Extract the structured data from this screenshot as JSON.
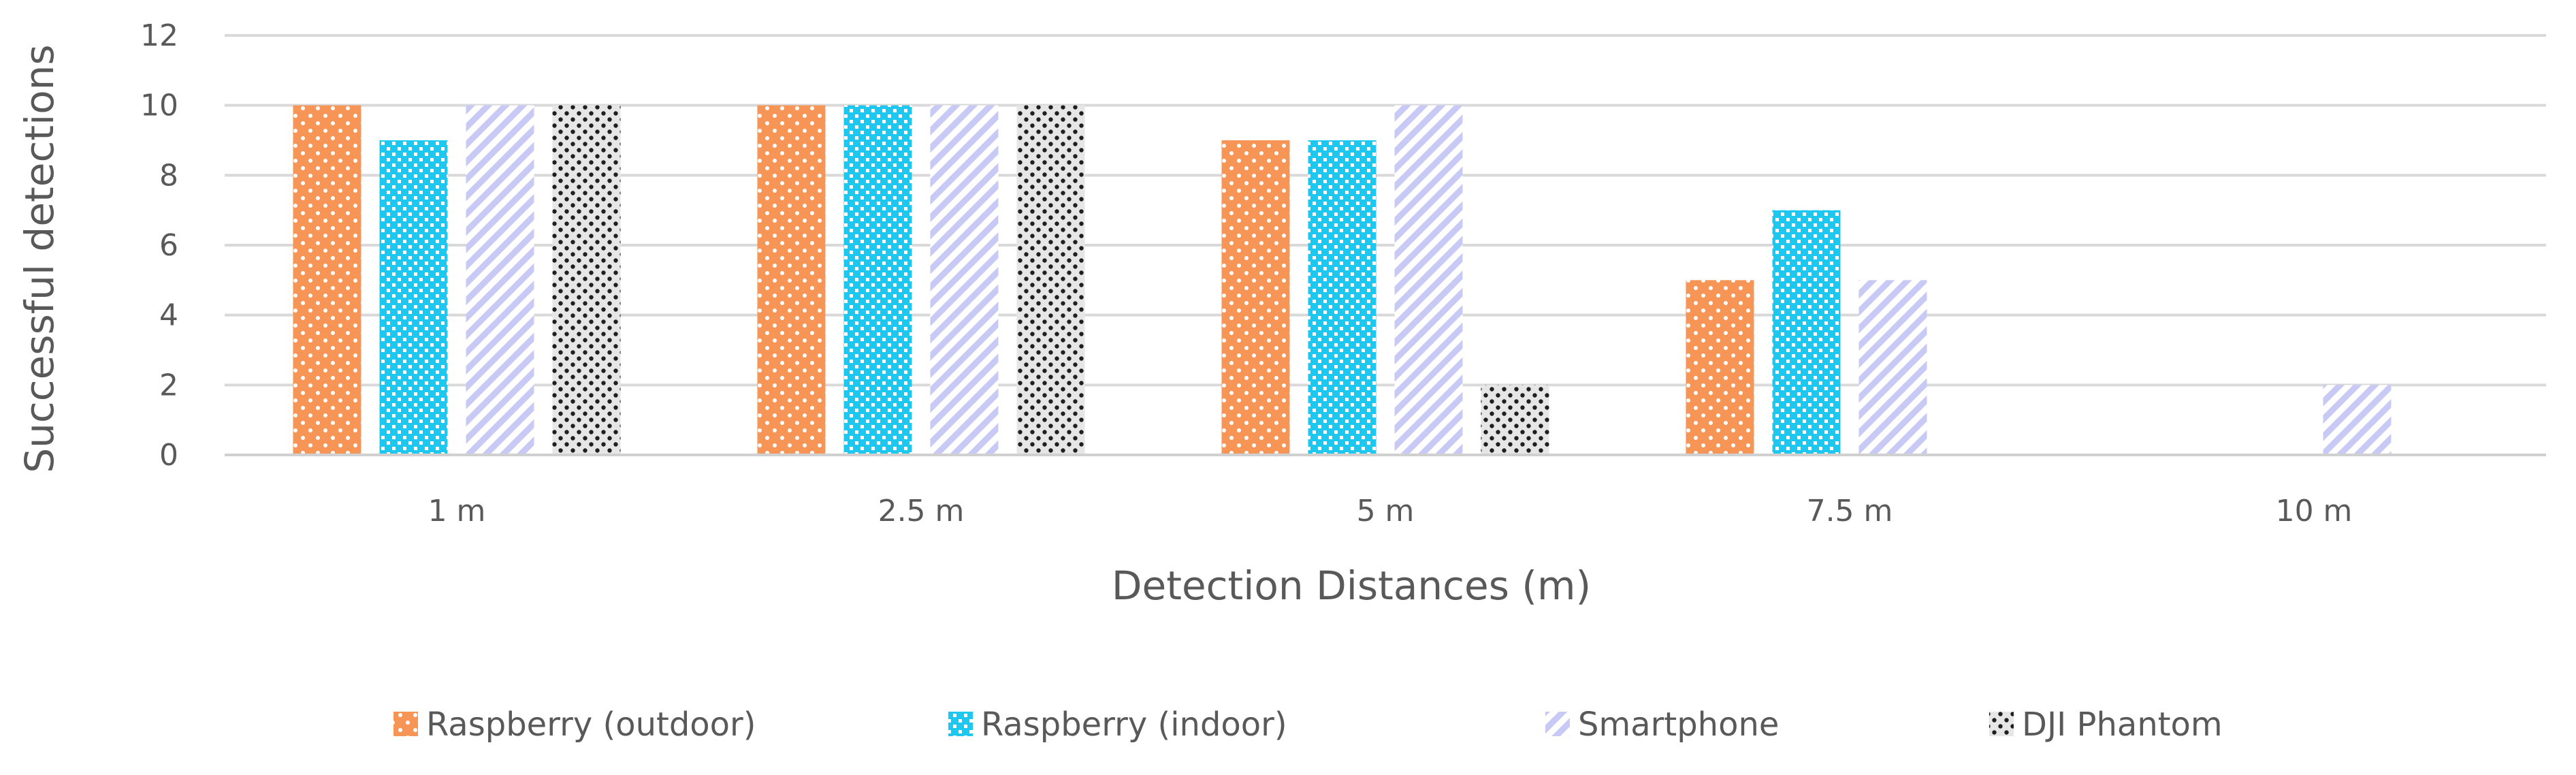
{
  "chart_data": {
    "type": "bar",
    "title": "",
    "xlabel": "Detection Distances (m)",
    "ylabel": "Successful detections",
    "categories": [
      "1 m",
      "2.5 m",
      "5 m",
      "7.5 m",
      "10 m"
    ],
    "ylim": [
      0,
      12
    ],
    "yticks": [
      0,
      2,
      4,
      6,
      8,
      10,
      12
    ],
    "grid": true,
    "legend_position": "bottom",
    "series": [
      {
        "name": "Raspberry (outdoor)",
        "color": "#F79556",
        "pattern": "dots",
        "values": [
          10,
          10,
          9,
          5,
          0
        ]
      },
      {
        "name": "Raspberry (indoor)",
        "color": "#1CC8F0",
        "pattern": "checker",
        "values": [
          9,
          10,
          9,
          7,
          0
        ]
      },
      {
        "name": "Smartphone",
        "color": "#C9C9F5",
        "pattern": "diagonal",
        "values": [
          10,
          10,
          10,
          5,
          2
        ]
      },
      {
        "name": "DJI Phantom",
        "color": "#BFBFBF",
        "pattern": "dark-dots",
        "values": [
          10,
          10,
          2,
          0,
          0
        ]
      }
    ]
  }
}
